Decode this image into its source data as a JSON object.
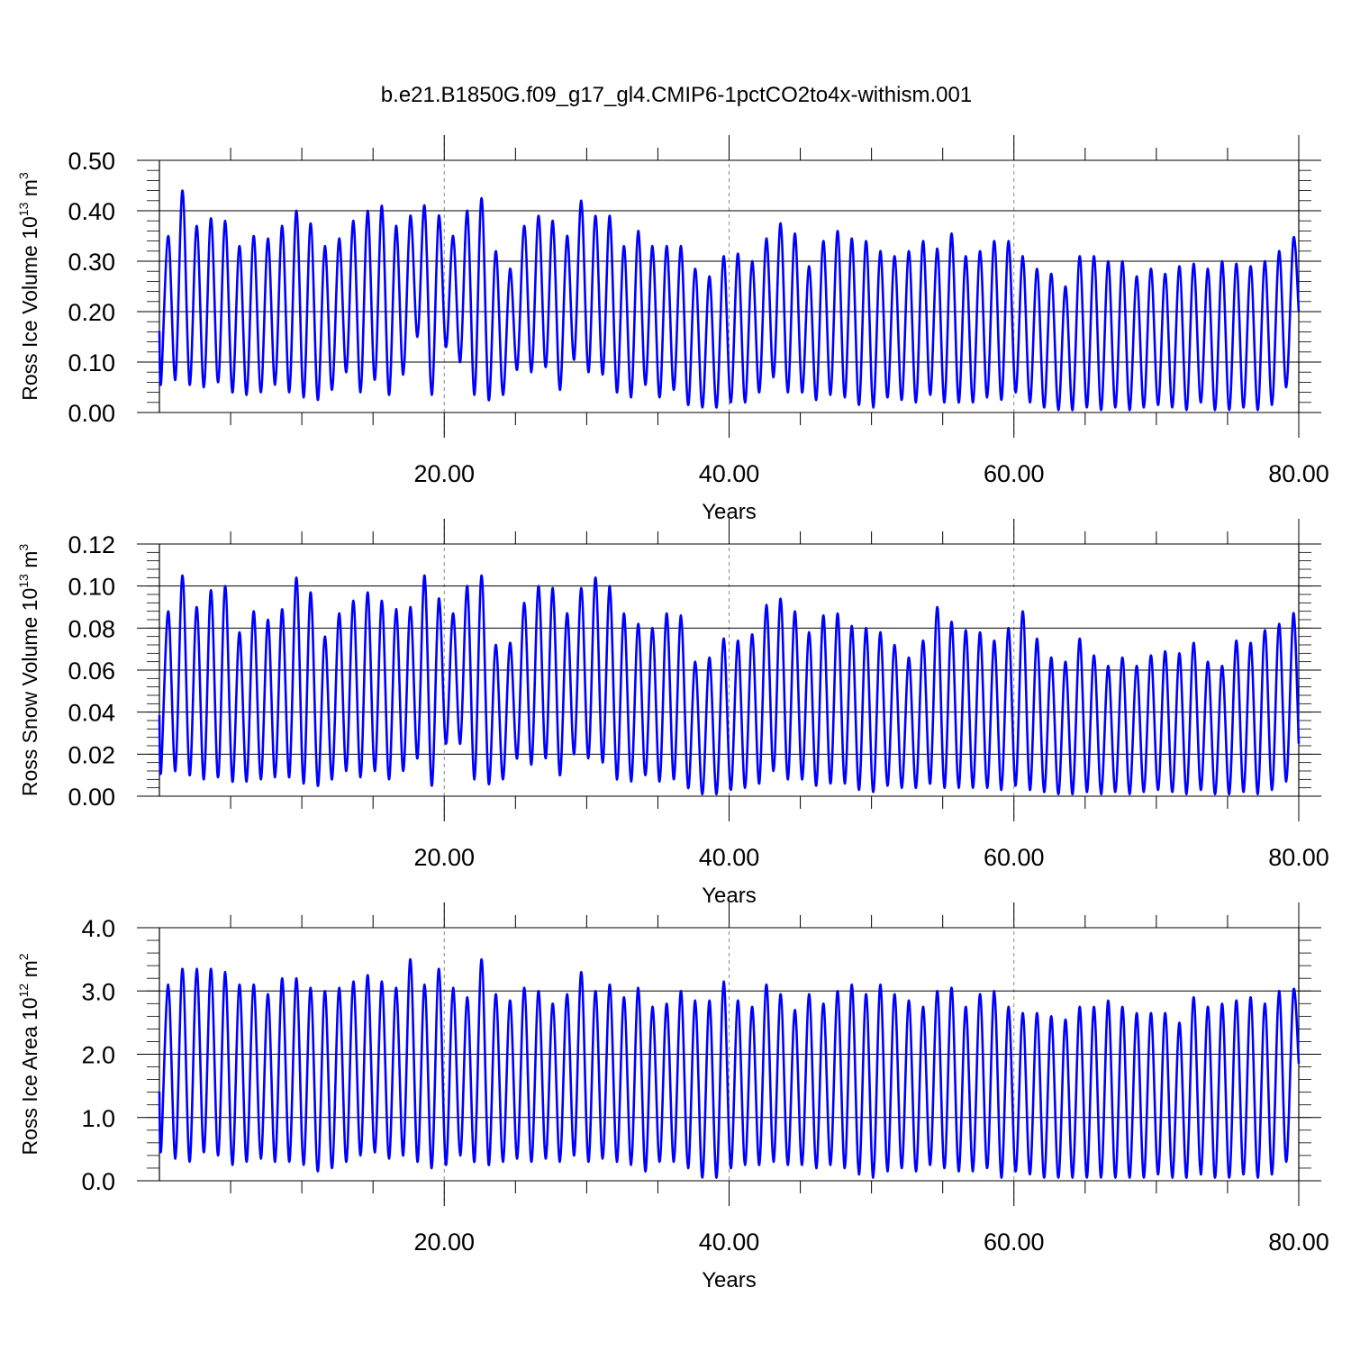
{
  "title": "b.e21.B1850G.f09_g17_gl4.CMIP6-1pctCO2to4x-withism.001",
  "line_color": "#0000ff",
  "grid_style": "dashed gray vertical lines at 20, 40, 60",
  "chart_data": [
    {
      "type": "line",
      "ylabel": {
        "base": "Ross Ice Volume 10",
        "exp": "13",
        "unit": " m",
        "unit_exp": "3"
      },
      "xlabel": "Years",
      "xlim": [
        0,
        80
      ],
      "ylim": [
        0,
        0.5
      ],
      "xticks": [
        20,
        40,
        60,
        80
      ],
      "xtick_labels": [
        "20.00",
        "40.00",
        "60.00",
        "80.00"
      ],
      "yticks": [
        0,
        0.1,
        0.2,
        0.3,
        0.4,
        0.5
      ],
      "ytick_labels": [
        "0.00",
        "0.10",
        "0.20",
        "0.30",
        "0.40",
        "0.50"
      ],
      "grid_x": [
        20,
        40,
        60
      ],
      "series": [
        {
          "start_year": 0.0,
          "end_value": 0.2,
          "yearly_min": [
            0.06,
            0.065,
            0.055,
            0.05,
            0.06,
            0.04,
            0.035,
            0.04,
            0.055,
            0.04,
            0.03,
            0.025,
            0.045,
            0.08,
            0.04,
            0.065,
            0.035,
            0.075,
            0.15,
            0.035,
            0.13,
            0.1,
            0.035,
            0.025,
            0.035,
            0.085,
            0.08,
            0.09,
            0.045,
            0.105,
            0.08,
            0.075,
            0.04,
            0.03,
            0.055,
            0.03,
            0.045,
            0.015,
            0.01,
            0.01,
            0.02,
            0.02,
            0.04,
            0.07,
            0.04,
            0.04,
            0.025,
            0.035,
            0.03,
            0.015,
            0.01,
            0.03,
            0.025,
            0.02,
            0.035,
            0.02,
            0.02,
            0.02,
            0.03,
            0.025,
            0.04,
            0.02,
            0.01,
            0.005,
            0.005,
            0.01,
            0.005,
            0.01,
            0.005,
            0.01,
            0.015,
            0.01,
            0.005,
            0.02,
            0.005,
            0.005,
            0.01,
            0.005,
            0.015,
            0.05
          ],
          "yearly_max": [
            0.35,
            0.44,
            0.37,
            0.385,
            0.38,
            0.33,
            0.35,
            0.345,
            0.37,
            0.4,
            0.375,
            0.33,
            0.345,
            0.38,
            0.4,
            0.41,
            0.37,
            0.39,
            0.41,
            0.39,
            0.35,
            0.4,
            0.425,
            0.32,
            0.285,
            0.37,
            0.39,
            0.38,
            0.35,
            0.42,
            0.39,
            0.39,
            0.33,
            0.36,
            0.33,
            0.33,
            0.33,
            0.285,
            0.27,
            0.31,
            0.315,
            0.3,
            0.345,
            0.375,
            0.355,
            0.29,
            0.34,
            0.36,
            0.345,
            0.34,
            0.32,
            0.31,
            0.32,
            0.34,
            0.325,
            0.355,
            0.31,
            0.32,
            0.34,
            0.34,
            0.31,
            0.285,
            0.275,
            0.25,
            0.31,
            0.31,
            0.3,
            0.3,
            0.27,
            0.285,
            0.275,
            0.29,
            0.295,
            0.285,
            0.3,
            0.295,
            0.29,
            0.3,
            0.32,
            0.345
          ],
          "peak_frac": 0.62
        }
      ]
    },
    {
      "type": "line",
      "ylabel": {
        "base": "Ross Snow Volume 10",
        "exp": "13",
        "unit": " m",
        "unit_exp": "3"
      },
      "xlabel": "Years",
      "xlim": [
        0,
        80
      ],
      "ylim": [
        0,
        0.12
      ],
      "xticks": [
        20,
        40,
        60,
        80
      ],
      "xtick_labels": [
        "20.00",
        "40.00",
        "60.00",
        "80.00"
      ],
      "yticks": [
        0,
        0.02,
        0.04,
        0.06,
        0.08,
        0.1,
        0.12
      ],
      "ytick_labels": [
        "0.00",
        "0.02",
        "0.04",
        "0.06",
        "0.08",
        "0.10",
        "0.12"
      ],
      "grid_x": [
        20,
        40,
        60
      ],
      "series": [
        {
          "start_year": 0.0,
          "end_value": 0.025,
          "yearly_min": [
            0.012,
            0.012,
            0.01,
            0.008,
            0.009,
            0.007,
            0.007,
            0.008,
            0.009,
            0.009,
            0.006,
            0.005,
            0.008,
            0.012,
            0.009,
            0.012,
            0.008,
            0.012,
            0.018,
            0.005,
            0.025,
            0.025,
            0.008,
            0.006,
            0.008,
            0.018,
            0.015,
            0.018,
            0.01,
            0.02,
            0.018,
            0.016,
            0.008,
            0.007,
            0.01,
            0.007,
            0.008,
            0.004,
            0.001,
            0.001,
            0.003,
            0.004,
            0.006,
            0.012,
            0.008,
            0.008,
            0.005,
            0.006,
            0.006,
            0.003,
            0.002,
            0.005,
            0.004,
            0.004,
            0.006,
            0.004,
            0.004,
            0.004,
            0.004,
            0.003,
            0.005,
            0.003,
            0.002,
            0.001,
            0.001,
            0.002,
            0.001,
            0.002,
            0.001,
            0.002,
            0.003,
            0.002,
            0.001,
            0.003,
            0.001,
            0.001,
            0.002,
            0.001,
            0.003,
            0.007
          ],
          "yearly_max": [
            0.088,
            0.105,
            0.09,
            0.098,
            0.1,
            0.078,
            0.088,
            0.084,
            0.089,
            0.104,
            0.097,
            0.076,
            0.087,
            0.093,
            0.097,
            0.093,
            0.089,
            0.09,
            0.105,
            0.094,
            0.087,
            0.1,
            0.105,
            0.072,
            0.073,
            0.092,
            0.1,
            0.099,
            0.087,
            0.099,
            0.104,
            0.1,
            0.087,
            0.082,
            0.08,
            0.087,
            0.086,
            0.064,
            0.066,
            0.075,
            0.074,
            0.077,
            0.091,
            0.094,
            0.088,
            0.078,
            0.086,
            0.087,
            0.081,
            0.08,
            0.078,
            0.072,
            0.066,
            0.074,
            0.09,
            0.083,
            0.079,
            0.078,
            0.074,
            0.08,
            0.088,
            0.075,
            0.066,
            0.064,
            0.075,
            0.067,
            0.062,
            0.066,
            0.062,
            0.067,
            0.069,
            0.068,
            0.073,
            0.064,
            0.062,
            0.074,
            0.073,
            0.079,
            0.082,
            0.087
          ],
          "peak_frac": 0.62
        }
      ]
    },
    {
      "type": "line",
      "ylabel": {
        "base": "Ross Ice Area 10",
        "exp": "12",
        "unit": " m",
        "unit_exp": "2"
      },
      "xlabel": "Years",
      "xlim": [
        0,
        80
      ],
      "ylim": [
        0,
        4.0
      ],
      "xticks": [
        20,
        40,
        60,
        80
      ],
      "xtick_labels": [
        "20.00",
        "40.00",
        "60.00",
        "80.00"
      ],
      "yticks": [
        0,
        1.0,
        2.0,
        3.0,
        4.0
      ],
      "ytick_labels": [
        "0.0",
        "1.0",
        "2.0",
        "3.0",
        "4.0"
      ],
      "grid_x": [
        20,
        40,
        60
      ],
      "series": [
        {
          "start_year": 0.0,
          "end_value": 1.85,
          "yearly_min": [
            0.5,
            0.35,
            0.3,
            0.45,
            0.4,
            0.25,
            0.3,
            0.35,
            0.3,
            0.3,
            0.25,
            0.15,
            0.2,
            0.3,
            0.4,
            0.45,
            0.35,
            0.4,
            0.3,
            0.2,
            0.25,
            0.4,
            0.3,
            0.25,
            0.3,
            0.35,
            0.3,
            0.35,
            0.3,
            0.4,
            0.3,
            0.35,
            0.3,
            0.25,
            0.15,
            0.3,
            0.3,
            0.2,
            0.05,
            0.05,
            0.2,
            0.25,
            0.25,
            0.3,
            0.25,
            0.25,
            0.2,
            0.25,
            0.2,
            0.1,
            0.05,
            0.15,
            0.2,
            0.15,
            0.25,
            0.2,
            0.15,
            0.15,
            0.2,
            0.05,
            0.15,
            0.1,
            0.05,
            0.05,
            0.05,
            0.05,
            0.05,
            0.05,
            0.05,
            0.05,
            0.1,
            0.05,
            0.05,
            0.1,
            0.05,
            0.05,
            0.1,
            0.05,
            0.1,
            0.3
          ],
          "yearly_max": [
            3.1,
            3.35,
            3.35,
            3.35,
            3.3,
            3.1,
            3.1,
            2.95,
            3.2,
            3.2,
            3.05,
            3.0,
            3.05,
            3.15,
            3.25,
            3.15,
            3.05,
            3.5,
            3.1,
            3.35,
            3.05,
            2.9,
            3.5,
            2.95,
            2.85,
            3.05,
            3.0,
            2.8,
            2.95,
            3.3,
            3.0,
            3.1,
            2.9,
            3.05,
            2.75,
            2.8,
            3.0,
            2.85,
            2.85,
            3.15,
            2.85,
            2.75,
            3.1,
            2.95,
            2.7,
            2.95,
            2.8,
            3.0,
            3.1,
            2.95,
            3.1,
            2.95,
            2.85,
            2.75,
            3.0,
            3.05,
            2.75,
            2.95,
            3.0,
            2.75,
            2.65,
            2.65,
            2.6,
            2.55,
            2.75,
            2.75,
            2.85,
            2.75,
            2.65,
            2.65,
            2.65,
            2.5,
            2.9,
            2.75,
            2.8,
            2.85,
            2.9,
            2.8,
            3.0,
            3.0
          ],
          "peak_frac": 0.62
        }
      ]
    }
  ]
}
